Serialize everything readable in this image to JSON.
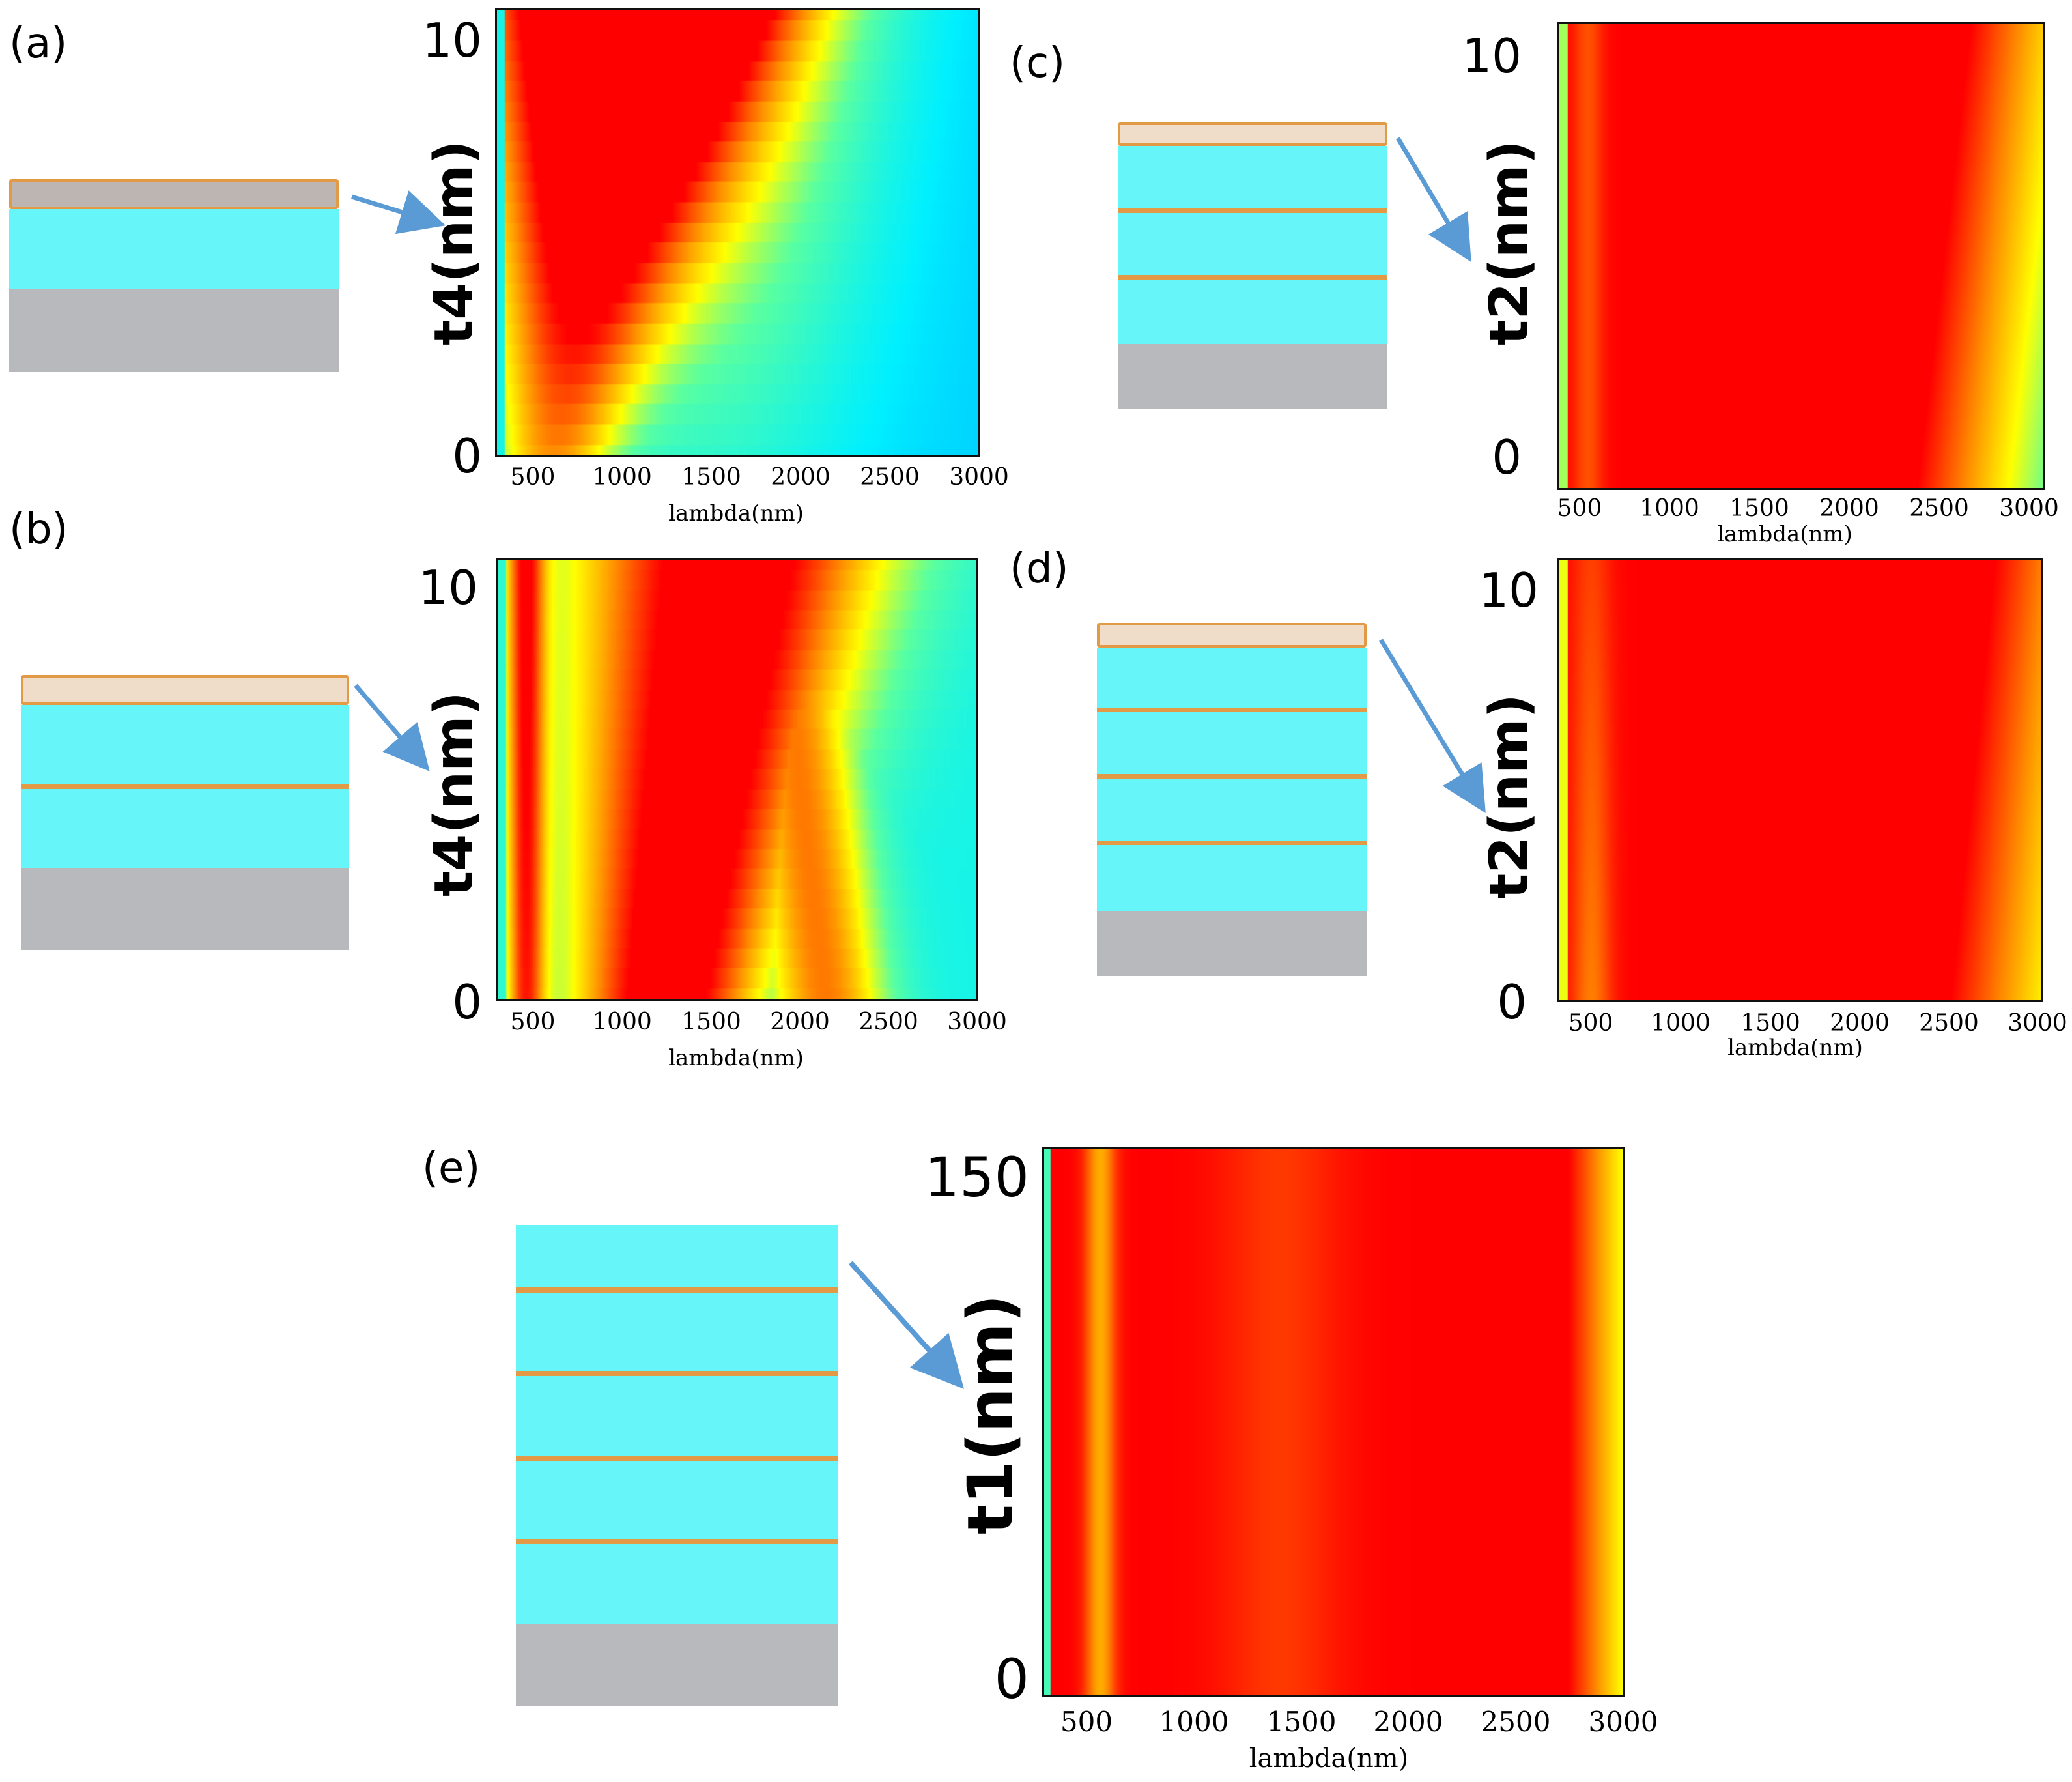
{
  "panel_labels": [
    "(a)",
    "(b)",
    "(c)",
    "(d)",
    "(e)"
  ],
  "colors": {
    "dielectric": "#66f5f8",
    "metal_line": "#e39a46",
    "cap_fill": "#efdcc9",
    "cap_fill_a": "#bdb5b2",
    "substrate": "#b8b9bd",
    "arrow": "#5b9bd5"
  },
  "chart_data": [
    {
      "panel": "(a)",
      "type": "heatmap",
      "xlabel": "lambda(nm)",
      "ylabel": "t4(nm)",
      "xlim": [
        300,
        3000
      ],
      "ylim": [
        0,
        10
      ],
      "xticks": [
        "500",
        "1000",
        "1500",
        "2000",
        "2500",
        "3000"
      ],
      "yticks": [
        "0",
        "10"
      ],
      "description_peak": "red near 600 nm"
    },
    {
      "panel": "(b)",
      "type": "heatmap",
      "xlabel": "lambda(nm)",
      "ylabel": "t4(nm)",
      "xlim": [
        300,
        3000
      ],
      "ylim": [
        0,
        10
      ],
      "xticks": [
        "500",
        "1000",
        "1500",
        "2000",
        "2500",
        "3000"
      ],
      "yticks": [
        "0",
        "10"
      ]
    },
    {
      "panel": "(c)",
      "type": "heatmap",
      "xlabel": "lambda(nm)",
      "ylabel": "t2(nm)",
      "xlim": [
        300,
        3000
      ],
      "ylim": [
        0,
        10
      ],
      "xticks": [
        "500",
        "1000",
        "1500",
        "2000",
        "2500",
        "3000"
      ],
      "yticks": [
        "0",
        "10"
      ]
    },
    {
      "panel": "(d)",
      "type": "heatmap",
      "xlabel": "lambda(nm)",
      "ylabel": "t2(nm)",
      "xlim": [
        300,
        3000
      ],
      "ylim": [
        0,
        10
      ],
      "xticks": [
        "500",
        "1000",
        "1500",
        "2000",
        "2500",
        "3000"
      ],
      "yticks": [
        "0",
        "10"
      ]
    },
    {
      "panel": "(e)",
      "type": "heatmap",
      "xlabel": "lambda(nm)",
      "ylabel": "t1(nm)",
      "xlim": [
        300,
        3000
      ],
      "ylim": [
        0,
        150
      ],
      "xticks": [
        "500",
        "1000",
        "1500",
        "2000",
        "2500",
        "3000"
      ],
      "yticks": [
        "0",
        "150"
      ]
    }
  ]
}
